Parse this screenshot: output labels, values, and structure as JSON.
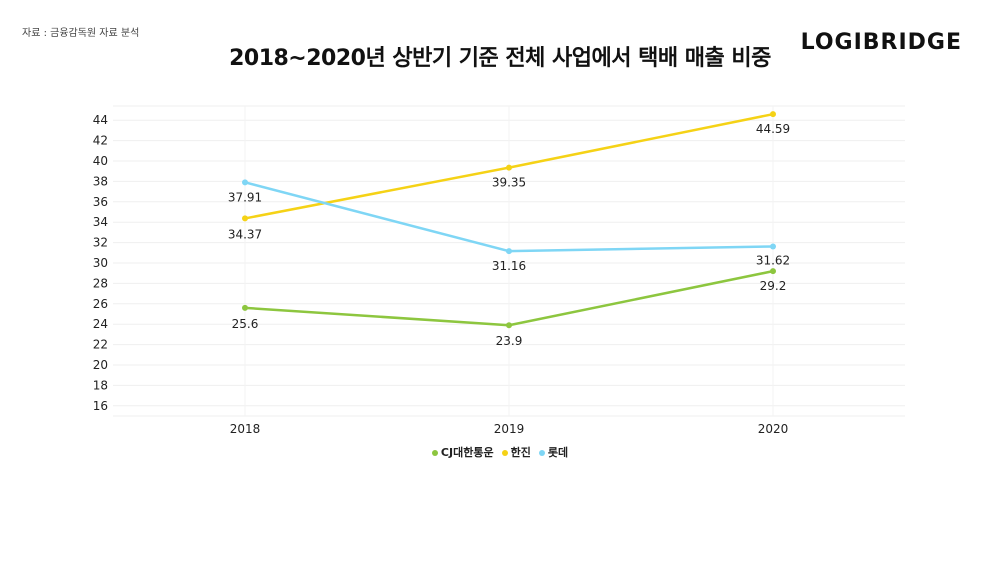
{
  "source": "자료 : 금융감독원 자료 분석",
  "logo": "LOGIBRIDGE",
  "chart_data": {
    "type": "line",
    "title": "2018~2020년 상반기 기준 전체 사업에서 택배 매출 비중",
    "categories": [
      "2018",
      "2019",
      "2020"
    ],
    "y_ticks": [
      16,
      18,
      20,
      22,
      24,
      26,
      28,
      30,
      32,
      34,
      36,
      38,
      40,
      42,
      44
    ],
    "ylim": [
      15,
      45
    ],
    "grid": true,
    "legend_position": "bottom",
    "series": [
      {
        "name": "CJ대한통운",
        "color": "#8dc63f",
        "values": [
          25.6,
          23.9,
          29.2
        ],
        "labels": [
          "25.6",
          "23.9",
          "29.2"
        ]
      },
      {
        "name": "한진",
        "color": "#f5d216",
        "values": [
          34.37,
          39.35,
          44.59
        ],
        "labels": [
          "34.37",
          "39.35",
          "44.59"
        ]
      },
      {
        "name": "롯데",
        "color": "#7fd6f5",
        "values": [
          37.91,
          31.16,
          31.62
        ],
        "labels": [
          "37.91",
          "31.16",
          "31.62"
        ]
      }
    ]
  }
}
